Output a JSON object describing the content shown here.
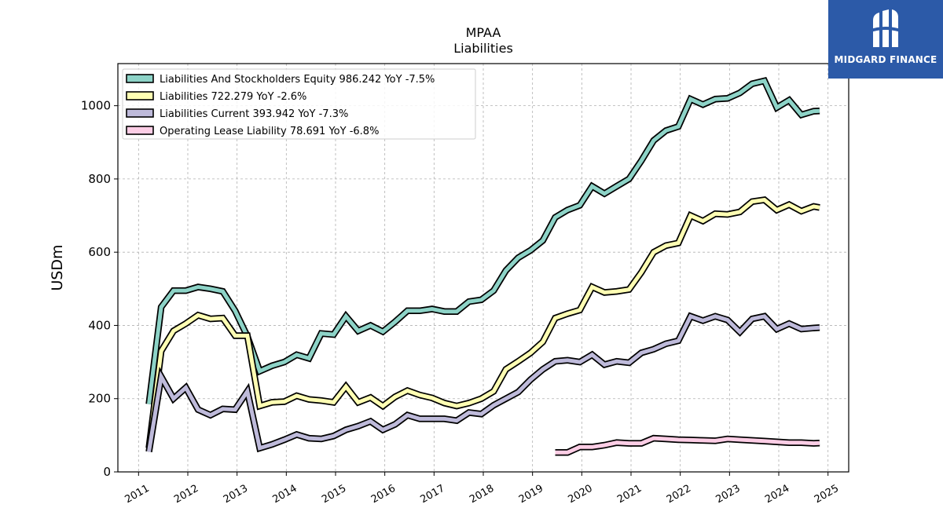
{
  "chart_data": {
    "type": "line",
    "title": "MPAA",
    "subtitle": "Liabilities",
    "ylabel": "USDm",
    "ylim": [
      0,
      1115
    ],
    "xlim": [
      2010.58,
      2025.42
    ],
    "yticks": [
      0,
      200,
      400,
      600,
      800,
      1000
    ],
    "xticks": [
      "2011",
      "2012",
      "2013",
      "2014",
      "2015",
      "2016",
      "2017",
      "2018",
      "2019",
      "2020",
      "2021",
      "2022",
      "2023",
      "2024",
      "2025"
    ],
    "grid": true,
    "legend_position": "top-left",
    "series": [
      {
        "name": "Liabilities And Stockholders Equity",
        "legend_label": "Liabilities And Stockholders Equity  986.242 YoY -7.5%",
        "color": "#8dd3c7",
        "points": [
          [
            2011.21,
            185
          ],
          [
            2011.46,
            450
          ],
          [
            2011.71,
            495
          ],
          [
            2011.96,
            495
          ],
          [
            2012.21,
            505
          ],
          [
            2012.46,
            500
          ],
          [
            2012.71,
            493
          ],
          [
            2012.96,
            440
          ],
          [
            2013.21,
            370
          ],
          [
            2013.46,
            275
          ],
          [
            2013.71,
            290
          ],
          [
            2013.96,
            300
          ],
          [
            2014.21,
            320
          ],
          [
            2014.46,
            310
          ],
          [
            2014.71,
            378
          ],
          [
            2014.96,
            375
          ],
          [
            2015.21,
            425
          ],
          [
            2015.46,
            385
          ],
          [
            2015.71,
            400
          ],
          [
            2015.96,
            383
          ],
          [
            2016.21,
            410
          ],
          [
            2016.46,
            440
          ],
          [
            2016.71,
            440
          ],
          [
            2016.96,
            445
          ],
          [
            2017.21,
            438
          ],
          [
            2017.46,
            438
          ],
          [
            2017.71,
            465
          ],
          [
            2017.96,
            470
          ],
          [
            2018.21,
            495
          ],
          [
            2018.46,
            550
          ],
          [
            2018.71,
            585
          ],
          [
            2018.96,
            605
          ],
          [
            2019.21,
            632
          ],
          [
            2019.46,
            695
          ],
          [
            2019.71,
            715
          ],
          [
            2019.96,
            728
          ],
          [
            2020.21,
            780
          ],
          [
            2020.46,
            760
          ],
          [
            2020.71,
            780
          ],
          [
            2020.96,
            800
          ],
          [
            2021.21,
            850
          ],
          [
            2021.46,
            905
          ],
          [
            2021.71,
            932
          ],
          [
            2021.96,
            943
          ],
          [
            2022.21,
            1018
          ],
          [
            2022.46,
            1003
          ],
          [
            2022.71,
            1018
          ],
          [
            2022.96,
            1020
          ],
          [
            2023.21,
            1035
          ],
          [
            2023.46,
            1060
          ],
          [
            2023.71,
            1068
          ],
          [
            2023.96,
            995
          ],
          [
            2024.21,
            1015
          ],
          [
            2024.46,
            975
          ],
          [
            2024.71,
            985
          ],
          [
            2024.83,
            986
          ]
        ]
      },
      {
        "name": "Liabilities",
        "legend_label": "Liabilities  722.279 YoY -2.6%",
        "color": "#ffffb3",
        "points": [
          [
            2011.21,
            65
          ],
          [
            2011.46,
            330
          ],
          [
            2011.71,
            385
          ],
          [
            2011.96,
            405
          ],
          [
            2012.21,
            428
          ],
          [
            2012.46,
            418
          ],
          [
            2012.71,
            420
          ],
          [
            2012.96,
            372
          ],
          [
            2013.21,
            372
          ],
          [
            2013.46,
            180
          ],
          [
            2013.71,
            190
          ],
          [
            2013.96,
            192
          ],
          [
            2014.21,
            208
          ],
          [
            2014.46,
            198
          ],
          [
            2014.71,
            195
          ],
          [
            2014.96,
            190
          ],
          [
            2015.21,
            233
          ],
          [
            2015.46,
            190
          ],
          [
            2015.71,
            203
          ],
          [
            2015.96,
            180
          ],
          [
            2016.21,
            205
          ],
          [
            2016.46,
            222
          ],
          [
            2016.71,
            210
          ],
          [
            2016.96,
            202
          ],
          [
            2017.21,
            188
          ],
          [
            2017.46,
            180
          ],
          [
            2017.71,
            188
          ],
          [
            2017.96,
            200
          ],
          [
            2018.21,
            220
          ],
          [
            2018.46,
            280
          ],
          [
            2018.71,
            302
          ],
          [
            2018.96,
            325
          ],
          [
            2019.21,
            355
          ],
          [
            2019.46,
            420
          ],
          [
            2019.71,
            432
          ],
          [
            2019.96,
            442
          ],
          [
            2020.21,
            505
          ],
          [
            2020.46,
            490
          ],
          [
            2020.71,
            493
          ],
          [
            2020.96,
            498
          ],
          [
            2021.21,
            545
          ],
          [
            2021.46,
            600
          ],
          [
            2021.71,
            618
          ],
          [
            2021.96,
            625
          ],
          [
            2022.21,
            700
          ],
          [
            2022.46,
            685
          ],
          [
            2022.71,
            705
          ],
          [
            2022.96,
            703
          ],
          [
            2023.21,
            710
          ],
          [
            2023.46,
            738
          ],
          [
            2023.71,
            743
          ],
          [
            2023.96,
            715
          ],
          [
            2024.21,
            730
          ],
          [
            2024.46,
            712
          ],
          [
            2024.71,
            725
          ],
          [
            2024.83,
            722
          ]
        ]
      },
      {
        "name": "Liabilities Current",
        "legend_label": "Liabilities Current  393.942 YoY -7.3%",
        "color": "#bebada",
        "points": [
          [
            2011.21,
            55
          ],
          [
            2011.46,
            260
          ],
          [
            2011.71,
            200
          ],
          [
            2011.96,
            230
          ],
          [
            2012.21,
            170
          ],
          [
            2012.46,
            155
          ],
          [
            2012.71,
            172
          ],
          [
            2012.96,
            170
          ],
          [
            2013.21,
            220
          ],
          [
            2013.46,
            65
          ],
          [
            2013.71,
            75
          ],
          [
            2013.96,
            88
          ],
          [
            2014.21,
            102
          ],
          [
            2014.46,
            92
          ],
          [
            2014.71,
            90
          ],
          [
            2014.96,
            98
          ],
          [
            2015.21,
            115
          ],
          [
            2015.46,
            125
          ],
          [
            2015.71,
            138
          ],
          [
            2015.96,
            115
          ],
          [
            2016.21,
            130
          ],
          [
            2016.46,
            155
          ],
          [
            2016.71,
            145
          ],
          [
            2016.96,
            145
          ],
          [
            2017.21,
            145
          ],
          [
            2017.46,
            140
          ],
          [
            2017.71,
            162
          ],
          [
            2017.96,
            158
          ],
          [
            2018.21,
            182
          ],
          [
            2018.46,
            200
          ],
          [
            2018.71,
            218
          ],
          [
            2018.96,
            252
          ],
          [
            2019.21,
            280
          ],
          [
            2019.46,
            302
          ],
          [
            2019.71,
            305
          ],
          [
            2019.96,
            300
          ],
          [
            2020.21,
            320
          ],
          [
            2020.46,
            293
          ],
          [
            2020.71,
            302
          ],
          [
            2020.96,
            298
          ],
          [
            2021.21,
            325
          ],
          [
            2021.46,
            335
          ],
          [
            2021.71,
            350
          ],
          [
            2021.96,
            358
          ],
          [
            2022.21,
            425
          ],
          [
            2022.46,
            413
          ],
          [
            2022.71,
            425
          ],
          [
            2022.96,
            415
          ],
          [
            2023.21,
            382
          ],
          [
            2023.46,
            418
          ],
          [
            2023.71,
            425
          ],
          [
            2023.96,
            390
          ],
          [
            2024.21,
            405
          ],
          [
            2024.46,
            390
          ],
          [
            2024.71,
            393
          ],
          [
            2024.83,
            394
          ]
        ]
      },
      {
        "name": "Operating Lease Liability",
        "legend_label": "Operating Lease Liability  78.691 YoY -6.8%",
        "color": "#fccde5",
        "points": [
          [
            2019.46,
            53
          ],
          [
            2019.71,
            53
          ],
          [
            2019.96,
            68
          ],
          [
            2020.21,
            68
          ],
          [
            2020.46,
            73
          ],
          [
            2020.71,
            80
          ],
          [
            2020.96,
            78
          ],
          [
            2021.21,
            78
          ],
          [
            2021.46,
            92
          ],
          [
            2021.71,
            90
          ],
          [
            2021.96,
            88
          ],
          [
            2022.21,
            87
          ],
          [
            2022.46,
            86
          ],
          [
            2022.71,
            85
          ],
          [
            2022.96,
            90
          ],
          [
            2023.21,
            88
          ],
          [
            2023.46,
            86
          ],
          [
            2023.71,
            84
          ],
          [
            2023.96,
            82
          ],
          [
            2024.21,
            80
          ],
          [
            2024.46,
            80
          ],
          [
            2024.71,
            78
          ],
          [
            2024.83,
            79
          ]
        ]
      }
    ]
  },
  "logo": {
    "text": "MIDGARD FINANCE"
  }
}
